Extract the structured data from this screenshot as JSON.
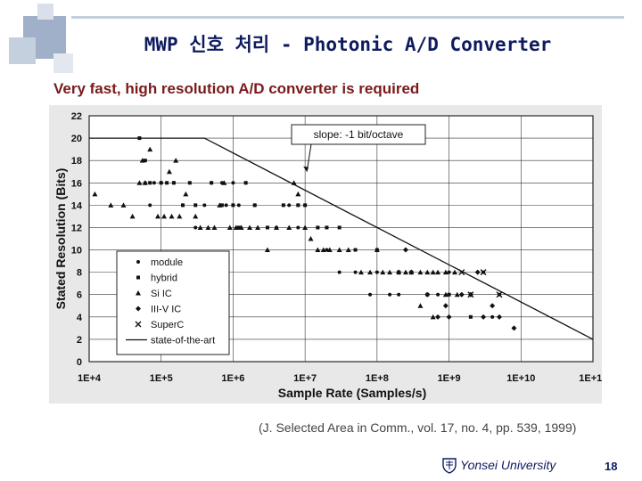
{
  "slide": {
    "title": "MWP 신호 처리 - Photonic A/D Converter",
    "subtitle": "Very fast, high resolution A/D converter is required",
    "citation": "(J. Selected Area in Comm., vol. 17, no. 4, pp. 539, 1999)",
    "university": "Yonsei University",
    "page_number": "18",
    "logo_icon": "shield-icon",
    "colors": {
      "title": "#0d1b5e",
      "subtitle": "#7a1a1a",
      "deco_square_dark": "#9fb0c8",
      "deco_square_light": "#d9e0ea"
    }
  },
  "chart_data": {
    "type": "scatter",
    "xlabel": "Sample Rate (Samples/s)",
    "ylabel": "Stated Resolution (Bits)",
    "x_scale": "log",
    "xlim": [
      10000,
      100000000000
    ],
    "ylim": [
      0,
      22
    ],
    "x_ticks": [
      "1E+4",
      "1E+5",
      "1E+6",
      "1E+7",
      "1E+8",
      "1E+9",
      "1E+10",
      "1E+11"
    ],
    "y_ticks": [
      0,
      2,
      4,
      6,
      8,
      10,
      12,
      14,
      16,
      18,
      20,
      22
    ],
    "grid": true,
    "legend_position": "bottom-left",
    "annotation": {
      "text": "slope:  -1 bit/octave",
      "x": 10000000,
      "y": 17
    },
    "series": [
      {
        "name": "module",
        "marker": "circle",
        "points": [
          [
            50000,
            20
          ],
          [
            60000,
            16
          ],
          [
            70000,
            14
          ],
          [
            80000,
            16
          ],
          [
            100000,
            16
          ],
          [
            150000,
            16
          ],
          [
            200000,
            14
          ],
          [
            300000,
            12
          ],
          [
            400000,
            14
          ],
          [
            500000,
            16
          ],
          [
            700000,
            16
          ],
          [
            800000,
            14
          ],
          [
            1000000,
            16
          ],
          [
            1200000,
            14
          ],
          [
            1500000,
            16
          ],
          [
            2000000,
            14
          ],
          [
            3000000,
            12
          ],
          [
            4000000,
            12
          ],
          [
            6000000,
            14
          ],
          [
            8000000,
            12
          ],
          [
            10000000,
            14
          ],
          [
            15000000,
            12
          ],
          [
            20000000,
            10
          ],
          [
            30000000,
            8
          ],
          [
            50000000,
            8
          ],
          [
            80000000,
            6
          ],
          [
            100000000,
            8
          ],
          [
            150000000,
            6
          ],
          [
            200000000,
            6
          ],
          [
            300000000,
            8
          ],
          [
            500000000,
            6
          ],
          [
            700000000,
            6
          ],
          [
            1000000000,
            8
          ],
          [
            1500000000,
            6
          ],
          [
            2000000000,
            6
          ],
          [
            3000000000,
            8
          ],
          [
            5000000000,
            6
          ],
          [
            4000000000,
            4
          ],
          [
            8000000000,
            3
          ]
        ]
      },
      {
        "name": "hybrid",
        "marker": "square",
        "points": [
          [
            50000,
            20
          ],
          [
            60000,
            18
          ],
          [
            70000,
            16
          ],
          [
            100000,
            16
          ],
          [
            120000,
            16
          ],
          [
            150000,
            16
          ],
          [
            200000,
            14
          ],
          [
            250000,
            16
          ],
          [
            300000,
            14
          ],
          [
            500000,
            16
          ],
          [
            700000,
            14
          ],
          [
            1000000,
            14
          ],
          [
            1200000,
            12
          ],
          [
            1500000,
            16
          ],
          [
            2000000,
            14
          ],
          [
            3000000,
            12
          ],
          [
            5000000,
            14
          ],
          [
            8000000,
            14
          ],
          [
            10000000,
            14
          ],
          [
            15000000,
            12
          ],
          [
            20000000,
            12
          ],
          [
            30000000,
            12
          ],
          [
            50000000,
            10
          ],
          [
            100000000,
            10
          ],
          [
            200000000,
            8
          ],
          [
            300000000,
            8
          ],
          [
            500000000,
            6
          ],
          [
            1000000000,
            6
          ],
          [
            2000000000,
            4
          ]
        ]
      },
      {
        "name": "Si IC",
        "marker": "triangle",
        "points": [
          [
            12000,
            15
          ],
          [
            20000,
            14
          ],
          [
            30000,
            14
          ],
          [
            40000,
            13
          ],
          [
            50000,
            16
          ],
          [
            55000,
            18
          ],
          [
            60000,
            16
          ],
          [
            70000,
            19
          ],
          [
            90000,
            13
          ],
          [
            110000,
            13
          ],
          [
            130000,
            17
          ],
          [
            140000,
            13
          ],
          [
            160000,
            18
          ],
          [
            180000,
            13
          ],
          [
            220000,
            15
          ],
          [
            300000,
            13
          ],
          [
            350000,
            12
          ],
          [
            450000,
            12
          ],
          [
            550000,
            12
          ],
          [
            650000,
            14
          ],
          [
            750000,
            16
          ],
          [
            900000,
            12
          ],
          [
            1100000,
            12
          ],
          [
            1300000,
            12
          ],
          [
            1700000,
            12
          ],
          [
            2200000,
            12
          ],
          [
            3000000,
            10
          ],
          [
            4000000,
            12
          ],
          [
            6000000,
            12
          ],
          [
            7000000,
            16
          ],
          [
            8000000,
            15
          ],
          [
            10000000,
            12
          ],
          [
            12000000,
            11
          ],
          [
            15000000,
            10
          ],
          [
            18000000,
            10
          ],
          [
            22000000,
            10
          ],
          [
            30000000,
            10
          ],
          [
            40000000,
            10
          ],
          [
            60000000,
            8
          ],
          [
            80000000,
            8
          ],
          [
            100000000,
            10
          ],
          [
            120000000,
            8
          ],
          [
            150000000,
            8
          ],
          [
            200000000,
            8
          ],
          [
            250000000,
            8
          ],
          [
            300000000,
            8
          ],
          [
            400000000,
            8
          ],
          [
            500000000,
            8
          ],
          [
            600000000,
            8
          ],
          [
            700000000,
            8
          ],
          [
            900000000,
            8
          ],
          [
            1200000000,
            8
          ],
          [
            400000000,
            5
          ],
          [
            600000000,
            4
          ],
          [
            900000000,
            6
          ],
          [
            1300000000,
            6
          ]
        ]
      },
      {
        "name": "III-V IC",
        "marker": "diamond",
        "points": [
          [
            200000000,
            8
          ],
          [
            250000000,
            10
          ],
          [
            300000000,
            8
          ],
          [
            500000000,
            6
          ],
          [
            700000000,
            4
          ],
          [
            900000000,
            5
          ],
          [
            1000000000,
            4
          ],
          [
            1500000000,
            6
          ],
          [
            2000000000,
            6
          ],
          [
            2500000000,
            8
          ],
          [
            3000000000,
            4
          ],
          [
            4000000000,
            5
          ],
          [
            5000000000,
            4
          ],
          [
            8000000000,
            3
          ]
        ]
      },
      {
        "name": "SuperC",
        "marker": "x",
        "points": [
          [
            1500000000,
            8
          ],
          [
            2000000000,
            6
          ],
          [
            3000000000,
            8
          ],
          [
            5000000000,
            6
          ]
        ]
      },
      {
        "name": "state-of-the-art",
        "marker": "line",
        "points": [
          [
            10000,
            20
          ],
          [
            400000,
            20
          ],
          [
            100000000000,
            2
          ]
        ]
      }
    ]
  }
}
